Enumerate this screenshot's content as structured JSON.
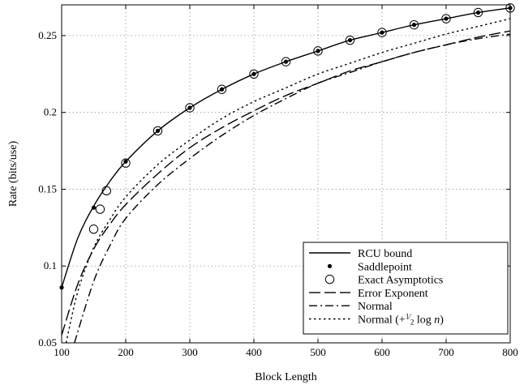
{
  "chart_data": {
    "type": "line",
    "title": "",
    "xlabel": "Block Length",
    "ylabel": "Rate (bits/use)",
    "xlim": [
      100,
      800
    ],
    "ylim": [
      0.05,
      0.27
    ],
    "xticks": [
      100,
      200,
      300,
      400,
      500,
      600,
      700,
      800
    ],
    "xtick_labels": [
      "100",
      "200",
      "300",
      "400",
      "500",
      "600",
      "700",
      "800"
    ],
    "yticks": [
      0.05,
      0.1,
      0.15,
      0.2,
      0.25
    ],
    "ytick_labels": [
      "0.05",
      "0.1",
      "0.15",
      "0.2",
      "0.25"
    ],
    "grid": true,
    "legend_position": "bottom-right",
    "series": [
      {
        "name": "RCU bound",
        "style": "solid",
        "marker": "none",
        "x": [
          100,
          125,
          150,
          175,
          200,
          250,
          300,
          350,
          400,
          450,
          500,
          550,
          600,
          650,
          700,
          750,
          800
        ],
        "y": [
          0.086,
          0.118,
          0.139,
          0.155,
          0.168,
          0.188,
          0.203,
          0.215,
          0.225,
          0.233,
          0.24,
          0.247,
          0.252,
          0.257,
          0.261,
          0.265,
          0.268
        ]
      },
      {
        "name": "Saddlepoint",
        "style": "none",
        "marker": "dot",
        "x": [
          100,
          150,
          200,
          250,
          300,
          350,
          400,
          450,
          500,
          550,
          600,
          650,
          700,
          750,
          800
        ],
        "y": [
          0.086,
          0.138,
          0.168,
          0.188,
          0.203,
          0.215,
          0.225,
          0.233,
          0.24,
          0.247,
          0.252,
          0.257,
          0.261,
          0.265,
          0.268
        ]
      },
      {
        "name": "Exact Asymptotics",
        "style": "none",
        "marker": "circle",
        "x": [
          150,
          160,
          170,
          200,
          250,
          300,
          350,
          400,
          450,
          500,
          550,
          600,
          650,
          700,
          750,
          800
        ],
        "y": [
          0.124,
          0.137,
          0.149,
          0.167,
          0.188,
          0.203,
          0.215,
          0.225,
          0.233,
          0.24,
          0.247,
          0.252,
          0.257,
          0.261,
          0.265,
          0.268
        ]
      },
      {
        "name": "Error Exponent",
        "style": "dashed",
        "marker": "none",
        "x": [
          100,
          125,
          150,
          175,
          200,
          250,
          300,
          350,
          400,
          450,
          500,
          550,
          600,
          650,
          700,
          750,
          800
        ],
        "y": [
          0.055,
          0.088,
          0.111,
          0.127,
          0.14,
          0.16,
          0.177,
          0.19,
          0.201,
          0.211,
          0.219,
          0.227,
          0.233,
          0.239,
          0.244,
          0.249,
          0.253
        ]
      },
      {
        "name": "Normal",
        "style": "dashdot",
        "marker": "none",
        "x": [
          120,
          150,
          175,
          200,
          250,
          300,
          350,
          400,
          450,
          500,
          550,
          600,
          650,
          700,
          750,
          800
        ],
        "y": [
          0.05,
          0.09,
          0.113,
          0.131,
          0.153,
          0.17,
          0.185,
          0.198,
          0.209,
          0.219,
          0.226,
          0.233,
          0.239,
          0.244,
          0.248,
          0.251
        ]
      },
      {
        "name": "Normal (+½ log n)",
        "name_prefix": "Normal (+",
        "name_frac_num": "1",
        "name_frac_den": "2",
        "name_suffix": " log ",
        "name_var": "n",
        "name_close": ")",
        "style": "dotted",
        "marker": "none",
        "x": [
          107,
          125,
          150,
          175,
          200,
          250,
          300,
          350,
          400,
          450,
          500,
          550,
          600,
          650,
          700,
          750,
          800
        ],
        "y": [
          0.05,
          0.083,
          0.112,
          0.13,
          0.145,
          0.166,
          0.182,
          0.196,
          0.207,
          0.216,
          0.225,
          0.232,
          0.239,
          0.245,
          0.251,
          0.256,
          0.261
        ]
      }
    ]
  }
}
